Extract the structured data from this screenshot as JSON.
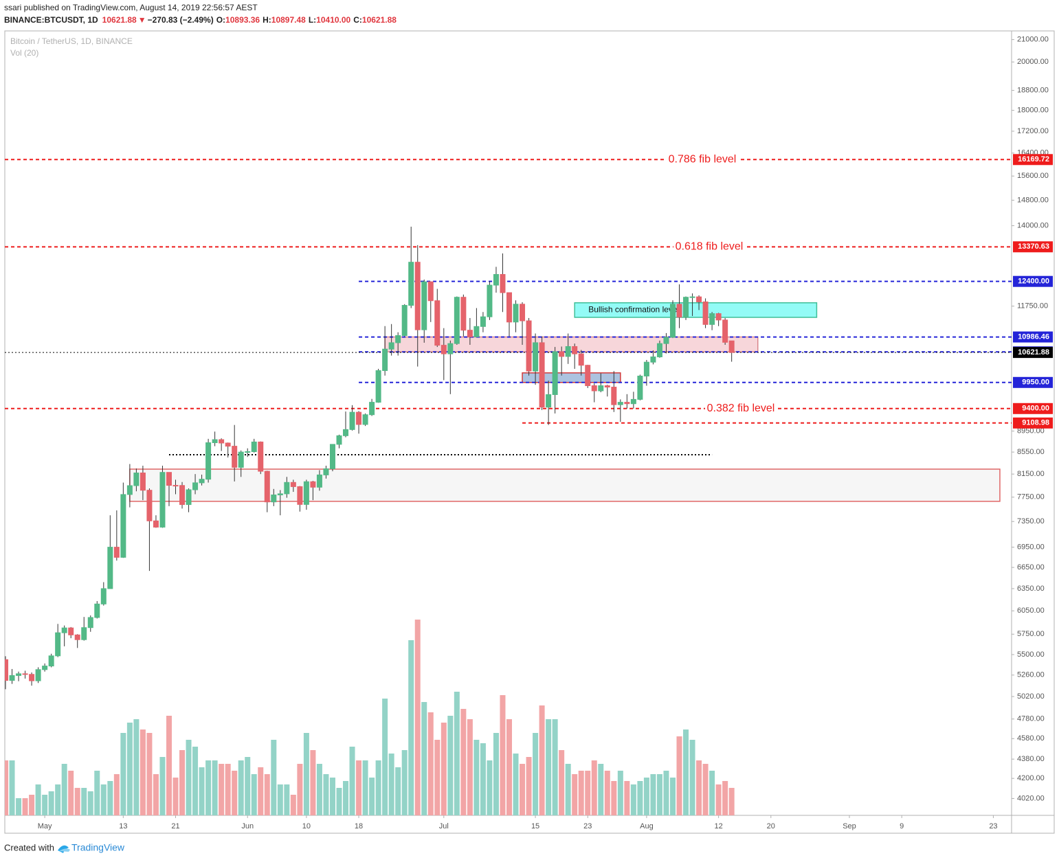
{
  "header": {
    "line1": "ssari published on TradingView.com, August 14, 2019 22:56:57 AEST",
    "symbol": "BINANCE:BTCUSDT, 1D",
    "price": "10621.88",
    "arrow": "▼",
    "change": "−270.83 (−2.49%)",
    "ohlc": [
      {
        "key": "O:",
        "value": "10893.36"
      },
      {
        "key": "H:",
        "value": "10897.48"
      },
      {
        "key": "L:",
        "value": "10410.00"
      },
      {
        "key": "C:",
        "value": "10621.88"
      }
    ]
  },
  "footer": {
    "created": "Created with",
    "brand": "TradingView"
  },
  "chart_data": {
    "type": "candlestick",
    "legend": [
      "Bitcoin / TetherUS, 1D, BINANCE",
      "Vol (20)"
    ],
    "log_scale": true,
    "up_color": "#53b987",
    "down_color": "#e5636b",
    "xlim": [
      "2019-04-25",
      "2019-09-26"
    ],
    "ylim": [
      3875,
      21400
    ],
    "xticks": [
      {
        "value": "2019-05-01",
        "label": "May"
      },
      {
        "value": "2019-05-13",
        "label": "13"
      },
      {
        "value": "2019-05-21",
        "label": "21"
      },
      {
        "value": "2019-06-01",
        "label": "Jun"
      },
      {
        "value": "2019-06-10",
        "label": "10"
      },
      {
        "value": "2019-06-18",
        "label": "18"
      },
      {
        "value": "2019-07-01",
        "label": "Jul"
      },
      {
        "value": "2019-07-15",
        "label": "15"
      },
      {
        "value": "2019-07-23",
        "label": "23"
      },
      {
        "value": "2019-08-01",
        "label": "Aug"
      },
      {
        "value": "2019-08-12",
        "label": "12"
      },
      {
        "value": "2019-08-20",
        "label": "20"
      },
      {
        "value": "2019-09-01",
        "label": "Sep"
      },
      {
        "value": "2019-09-09",
        "label": "9"
      },
      {
        "value": "2019-09-23",
        "label": "23"
      }
    ],
    "yticks": [
      {
        "value": 21000,
        "label": "21000.00"
      },
      {
        "value": 20000,
        "label": "20000.00"
      },
      {
        "value": 18800,
        "label": "18800.00"
      },
      {
        "value": 18000,
        "label": "18000.00"
      },
      {
        "value": 17200,
        "label": "17200.00"
      },
      {
        "value": 16400,
        "label": "16400.00"
      },
      {
        "value": 15600,
        "label": "15600.00"
      },
      {
        "value": 14800,
        "label": "14800.00"
      },
      {
        "value": 14000,
        "label": "14000.00"
      },
      {
        "value": 11750,
        "label": "11750.00"
      },
      {
        "value": 8950,
        "label": "8950.00"
      },
      {
        "value": 8550,
        "label": "8550.00"
      },
      {
        "value": 8150,
        "label": "8150.00"
      },
      {
        "value": 7750,
        "label": "7750.00"
      },
      {
        "value": 7350,
        "label": "7350.00"
      },
      {
        "value": 6950,
        "label": "6950.00"
      },
      {
        "value": 6650,
        "label": "6650.00"
      },
      {
        "value": 6350,
        "label": "6350.00"
      },
      {
        "value": 6050,
        "label": "6050.00"
      },
      {
        "value": 5750,
        "label": "5750.00"
      },
      {
        "value": 5500,
        "label": "5500.00"
      },
      {
        "value": 5260,
        "label": "5260.00"
      },
      {
        "value": 5020,
        "label": "5020.00"
      },
      {
        "value": 4780,
        "label": "4780.00"
      },
      {
        "value": 4580,
        "label": "4580.00"
      },
      {
        "value": 4380,
        "label": "4380.00"
      },
      {
        "value": 4200,
        "label": "4200.00"
      },
      {
        "value": 4020,
        "label": "4020.00"
      }
    ],
    "x": [
      "2019-04-25",
      "2019-04-26",
      "2019-04-27",
      "2019-04-28",
      "2019-04-29",
      "2019-04-30",
      "2019-05-01",
      "2019-05-02",
      "2019-05-03",
      "2019-05-04",
      "2019-05-05",
      "2019-05-06",
      "2019-05-07",
      "2019-05-08",
      "2019-05-09",
      "2019-05-10",
      "2019-05-11",
      "2019-05-12",
      "2019-05-13",
      "2019-05-14",
      "2019-05-15",
      "2019-05-16",
      "2019-05-17",
      "2019-05-18",
      "2019-05-19",
      "2019-05-20",
      "2019-05-21",
      "2019-05-22",
      "2019-05-23",
      "2019-05-24",
      "2019-05-25",
      "2019-05-26",
      "2019-05-27",
      "2019-05-28",
      "2019-05-29",
      "2019-05-30",
      "2019-05-31",
      "2019-06-01",
      "2019-06-02",
      "2019-06-03",
      "2019-06-04",
      "2019-06-05",
      "2019-06-06",
      "2019-06-07",
      "2019-06-08",
      "2019-06-09",
      "2019-06-10",
      "2019-06-11",
      "2019-06-12",
      "2019-06-13",
      "2019-06-14",
      "2019-06-15",
      "2019-06-16",
      "2019-06-17",
      "2019-06-18",
      "2019-06-19",
      "2019-06-20",
      "2019-06-21",
      "2019-06-22",
      "2019-06-23",
      "2019-06-24",
      "2019-06-25",
      "2019-06-26",
      "2019-06-27",
      "2019-06-28",
      "2019-06-29",
      "2019-06-30",
      "2019-07-01",
      "2019-07-02",
      "2019-07-03",
      "2019-07-04",
      "2019-07-05",
      "2019-07-06",
      "2019-07-07",
      "2019-07-08",
      "2019-07-09",
      "2019-07-10",
      "2019-07-11",
      "2019-07-12",
      "2019-07-13",
      "2019-07-14",
      "2019-07-15",
      "2019-07-16",
      "2019-07-17",
      "2019-07-18",
      "2019-07-19",
      "2019-07-20",
      "2019-07-21",
      "2019-07-22",
      "2019-07-23",
      "2019-07-24",
      "2019-07-25",
      "2019-07-26",
      "2019-07-27",
      "2019-07-28",
      "2019-07-29",
      "2019-07-30",
      "2019-07-31",
      "2019-08-01",
      "2019-08-02",
      "2019-08-03",
      "2019-08-04",
      "2019-08-05",
      "2019-08-06",
      "2019-08-07",
      "2019-08-08",
      "2019-08-09",
      "2019-08-10",
      "2019-08-11",
      "2019-08-12",
      "2019-08-13",
      "2019-08-14"
    ],
    "candles": [
      [
        5440,
        5480,
        5100,
        5199
      ],
      [
        5199,
        5330,
        5160,
        5255
      ],
      [
        5255,
        5300,
        5190,
        5275
      ],
      [
        5275,
        5310,
        5220,
        5268
      ],
      [
        5268,
        5290,
        5140,
        5195
      ],
      [
        5195,
        5350,
        5170,
        5323
      ],
      [
        5323,
        5395,
        5300,
        5365
      ],
      [
        5365,
        5510,
        5350,
        5485
      ],
      [
        5485,
        5880,
        5470,
        5768
      ],
      [
        5768,
        5860,
        5600,
        5829
      ],
      [
        5829,
        5840,
        5700,
        5741
      ],
      [
        5741,
        5750,
        5580,
        5682
      ],
      [
        5682,
        5970,
        5670,
        5833
      ],
      [
        5833,
        5990,
        5780,
        5963
      ],
      [
        5963,
        6180,
        5950,
        6141
      ],
      [
        6141,
        6440,
        6120,
        6350
      ],
      [
        6350,
        7450,
        6350,
        6950
      ],
      [
        6950,
        7530,
        6750,
        6798
      ],
      [
        6798,
        8000,
        6790,
        7795
      ],
      [
        7795,
        8330,
        7580,
        7947
      ],
      [
        7947,
        8250,
        7850,
        8170
      ],
      [
        8170,
        8300,
        7700,
        7868
      ],
      [
        7868,
        7900,
        6600,
        7360
      ],
      [
        7360,
        7450,
        7250,
        7260
      ],
      [
        7260,
        8300,
        7250,
        8180
      ],
      [
        8180,
        8180,
        7600,
        7952
      ],
      [
        7952,
        8050,
        7800,
        7950
      ],
      [
        7950,
        8010,
        7560,
        7626
      ],
      [
        7626,
        7900,
        7500,
        7876
      ],
      [
        7876,
        8150,
        7800,
        7996
      ],
      [
        7996,
        8140,
        7950,
        8059
      ],
      [
        8059,
        8800,
        8000,
        8726
      ],
      [
        8726,
        8940,
        8660,
        8785
      ],
      [
        8785,
        8810,
        8570,
        8720
      ],
      [
        8720,
        8730,
        8450,
        8660
      ],
      [
        8660,
        9070,
        8020,
        8270
      ],
      [
        8270,
        8580,
        8100,
        8550
      ],
      [
        8550,
        8620,
        8460,
        8558
      ],
      [
        8558,
        8800,
        8540,
        8740
      ],
      [
        8740,
        8750,
        8150,
        8200
      ],
      [
        8200,
        8210,
        7500,
        7670
      ],
      [
        7670,
        7890,
        7600,
        7788
      ],
      [
        7788,
        7870,
        7450,
        7807
      ],
      [
        7807,
        8100,
        7740,
        8003
      ],
      [
        8003,
        8050,
        7840,
        7930
      ],
      [
        7930,
        7940,
        7510,
        7628
      ],
      [
        7628,
        8050,
        7540,
        8015
      ],
      [
        8015,
        8030,
        7700,
        7920
      ],
      [
        7920,
        8220,
        7860,
        8135
      ],
      [
        8135,
        8300,
        8070,
        8245
      ],
      [
        8245,
        8700,
        8200,
        8695
      ],
      [
        8695,
        8880,
        8620,
        8860
      ],
      [
        8860,
        9340,
        8830,
        8980
      ],
      [
        8980,
        9470,
        8960,
        9325
      ],
      [
        9325,
        9350,
        8900,
        9080
      ],
      [
        9080,
        9300,
        9050,
        9275
      ],
      [
        9275,
        9600,
        9250,
        9530
      ],
      [
        9530,
        10250,
        9520,
        10210
      ],
      [
        10210,
        11250,
        10100,
        10700
      ],
      [
        10700,
        11300,
        10550,
        10850
      ],
      [
        10850,
        11100,
        10550,
        11020
      ],
      [
        11020,
        11800,
        11000,
        11770
      ],
      [
        11770,
        13970,
        11700,
        12930
      ],
      [
        12930,
        13420,
        10300,
        11160
      ],
      [
        11160,
        12450,
        10850,
        12390
      ],
      [
        12390,
        12400,
        11350,
        11890
      ],
      [
        11890,
        12200,
        10750,
        10790
      ],
      [
        10790,
        11200,
        10000,
        10590
      ],
      [
        10590,
        10900,
        9700,
        10830
      ],
      [
        10830,
        12000,
        10800,
        11980
      ],
      [
        11980,
        12050,
        11000,
        11150
      ],
      [
        11150,
        11450,
        10800,
        10990
      ],
      [
        10990,
        11700,
        10980,
        11240
      ],
      [
        11240,
        11600,
        11100,
        11480
      ],
      [
        11480,
        12400,
        11400,
        12300
      ],
      [
        12300,
        12800,
        12100,
        12590
      ],
      [
        12590,
        13180,
        11600,
        12100
      ],
      [
        12100,
        12100,
        11000,
        11350
      ],
      [
        11350,
        11900,
        11100,
        11800
      ],
      [
        11800,
        11850,
        10800,
        11380
      ],
      [
        11380,
        11450,
        10100,
        10200
      ],
      [
        10200,
        11070,
        9900,
        10850
      ],
      [
        10850,
        11000,
        9370,
        9430
      ],
      [
        9430,
        9990,
        9070,
        9690
      ],
      [
        9690,
        10750,
        9300,
        10640
      ],
      [
        10640,
        10760,
        10100,
        10530
      ],
      [
        10530,
        11070,
        10360,
        10760
      ],
      [
        10760,
        10830,
        10250,
        10590
      ],
      [
        10590,
        10680,
        10100,
        10330
      ],
      [
        10330,
        10340,
        9830,
        9880
      ],
      [
        9880,
        9930,
        9530,
        9770
      ],
      [
        9770,
        10150,
        9740,
        9880
      ],
      [
        9880,
        9900,
        9650,
        9850
      ],
      [
        9850,
        10200,
        9330,
        9480
      ],
      [
        9480,
        9590,
        9130,
        9530
      ],
      [
        9530,
        9700,
        9400,
        9500
      ],
      [
        9500,
        9750,
        9400,
        9590
      ],
      [
        9590,
        10120,
        9570,
        10090
      ],
      [
        10090,
        10450,
        9880,
        10400
      ],
      [
        10400,
        10670,
        10350,
        10520
      ],
      [
        10520,
        10900,
        10500,
        10830
      ],
      [
        10830,
        11080,
        10600,
        10980
      ],
      [
        10980,
        11900,
        10960,
        11800
      ],
      [
        11800,
        12320,
        11200,
        11470
      ],
      [
        11470,
        12000,
        11400,
        11980
      ],
      [
        11980,
        12080,
        11500,
        11990
      ],
      [
        11990,
        12030,
        11650,
        11860
      ],
      [
        11860,
        11950,
        11200,
        11290
      ],
      [
        11290,
        11600,
        11150,
        11560
      ],
      [
        11560,
        11580,
        11250,
        11400
      ],
      [
        11400,
        11450,
        10800,
        10860
      ],
      [
        10893.36,
        10897.48,
        10410,
        10621.88
      ]
    ],
    "volume": {
      "up_color": "#93d3c7",
      "down_color": "#f2a5a6",
      "vlim": [
        0,
        300
      ],
      "values": [
        80,
        80,
        25,
        25,
        30,
        45,
        30,
        35,
        45,
        75,
        65,
        40,
        40,
        35,
        65,
        45,
        50,
        60,
        120,
        135,
        140,
        125,
        120,
        60,
        85,
        145,
        55,
        95,
        110,
        100,
        70,
        80,
        80,
        75,
        75,
        65,
        80,
        85,
        60,
        70,
        60,
        110,
        45,
        45,
        30,
        75,
        120,
        95,
        75,
        60,
        55,
        40,
        50,
        100,
        80,
        80,
        55,
        80,
        170,
        90,
        70,
        95,
        255,
        285,
        165,
        150,
        110,
        135,
        145,
        180,
        155,
        140,
        110,
        105,
        80,
        120,
        175,
        140,
        90,
        75,
        85,
        120,
        160,
        140,
        140,
        95,
        75,
        60,
        65,
        65,
        80,
        75,
        65,
        50,
        65,
        50,
        45,
        50,
        55,
        60,
        60,
        65,
        55,
        115,
        125,
        110,
        80,
        75,
        65,
        45,
        50,
        40
      ]
    },
    "zones": [
      {
        "from": "2019-05-14",
        "to": "2019-09-24",
        "low": 7680,
        "high": 8238,
        "fill": "#f4f4f4",
        "stroke": "#e06666"
      },
      {
        "from": "2019-06-22",
        "to": "2019-08-18",
        "low": 10635.86,
        "high": 10986.46,
        "fill": "#f6cfd3",
        "stroke": "#d9868d"
      },
      {
        "from": "2019-07-13",
        "to": "2019-07-28",
        "low": 9950,
        "high": 10160,
        "fill": "#9db8db",
        "stroke": "#d23a3a"
      },
      {
        "from": "2019-07-21",
        "to": "2019-08-27",
        "low": 11466,
        "high": 11836,
        "fill": "#80faf5",
        "stroke": "#3fbf98",
        "text": "Bullish confirmation level"
      }
    ],
    "levels": [
      {
        "value": 16169.72,
        "color": "#ee1c1c",
        "style": "dash",
        "text": "0.786 fib level"
      },
      {
        "value": 13370.63,
        "color": "#ee1c1c",
        "style": "dash",
        "text": "0.618 fib level"
      },
      {
        "value": 12400,
        "label": "12400.00",
        "color": "#2424d8",
        "style": "dash",
        "from": "2019-06-18"
      },
      {
        "value": 10986.46,
        "color": "#2424d8",
        "style": "dash",
        "from": "2019-06-18"
      },
      {
        "value": 10635.86,
        "color": "#2424d8",
        "style": "dash",
        "from": "2019-06-18"
      },
      {
        "value": 10621.88,
        "color": "#000000",
        "style": "dot"
      },
      {
        "value": 9950,
        "label": "9950.00",
        "color": "#2424d8",
        "style": "dash",
        "from": "2019-06-18"
      },
      {
        "value": 9400,
        "label": "9400.00",
        "color": "#ee1c1c",
        "style": "dash",
        "text": "0.382 fib level"
      },
      {
        "value": 9108.98,
        "color": "#ee1c1c",
        "style": "dash",
        "from": "2019-07-13"
      },
      {
        "value": 8500,
        "color": "#000000",
        "style": "dot",
        "from": "2019-05-20",
        "to": "2019-08-11",
        "tagless": true
      }
    ]
  }
}
